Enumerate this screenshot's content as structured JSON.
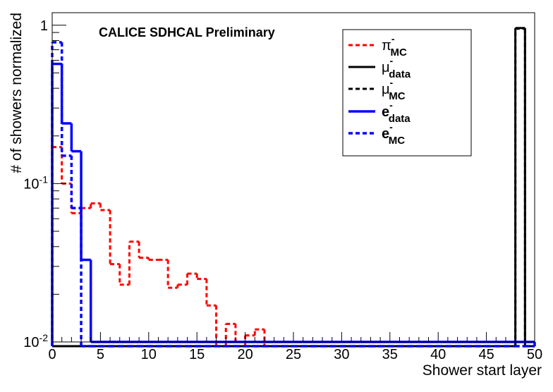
{
  "chart_data": {
    "type": "line",
    "title": "CALICE SDHCAL Preliminary",
    "xlabel": "Shower start layer",
    "ylabel": "# of showers normalized",
    "xlim": [
      0,
      50
    ],
    "ylim": [
      0.01,
      1.2
    ],
    "yscale": "log",
    "x_ticks": [
      "0",
      "5",
      "10",
      "15",
      "20",
      "25",
      "30",
      "35",
      "40",
      "45",
      "50"
    ],
    "y_ticks": [
      {
        "base": "10",
        "exp": "-2",
        "value": 0.01
      },
      {
        "base": "10",
        "exp": "-1",
        "value": 0.1
      },
      {
        "base": "1",
        "exp": "",
        "value": 1
      }
    ],
    "legend_position": "top-right",
    "series": [
      {
        "name": "π-MC",
        "sym": "π",
        "sup": "-",
        "sub": "MC",
        "color": "#ff0000",
        "dash": true,
        "bold": false,
        "x": [
          0,
          1,
          2,
          3,
          4,
          5,
          6,
          7,
          8,
          9,
          10,
          11,
          12,
          13,
          14,
          15,
          16,
          17,
          18,
          19,
          20,
          21,
          22,
          23,
          24,
          25,
          26,
          27,
          28,
          29,
          30,
          31,
          32,
          33,
          34,
          35,
          36,
          37,
          38,
          39,
          40,
          41,
          42,
          43,
          44,
          45,
          46,
          47,
          48,
          49
        ],
        "y": [
          0.17,
          0.1,
          0.065,
          0.07,
          0.075,
          0.068,
          0.031,
          0.023,
          0.043,
          0.034,
          0.033,
          0.033,
          0.022,
          0.023,
          0.027,
          0.025,
          0.017,
          0.009,
          0.013,
          0.008,
          0.011,
          0.012,
          0.009,
          0.009,
          0.009,
          0.009,
          0.009,
          0.009,
          0.009,
          0.009,
          0.009,
          0.009,
          0.009,
          0.009,
          0.009,
          0.009,
          0.009,
          0.009,
          0.009,
          0.009,
          0.009,
          0.009,
          0.009,
          0.009,
          0.009,
          0.009,
          0.009,
          0.009,
          0.009,
          0.009
        ]
      },
      {
        "name": "μ-data",
        "sym": "μ",
        "sup": "-",
        "sub": "data",
        "color": "#000000",
        "dash": false,
        "bold": false,
        "x": [
          0,
          1,
          2,
          3,
          4,
          5,
          6,
          7,
          8,
          9,
          10,
          11,
          12,
          13,
          14,
          15,
          16,
          17,
          18,
          19,
          20,
          21,
          22,
          23,
          24,
          25,
          26,
          27,
          28,
          29,
          30,
          31,
          32,
          33,
          34,
          35,
          36,
          37,
          38,
          39,
          40,
          41,
          42,
          43,
          44,
          45,
          46,
          47,
          48,
          49
        ],
        "y": [
          0.009,
          0.009,
          0.009,
          0.009,
          0.009,
          0.009,
          0.009,
          0.009,
          0.009,
          0.009,
          0.009,
          0.009,
          0.009,
          0.009,
          0.009,
          0.009,
          0.009,
          0.009,
          0.009,
          0.009,
          0.009,
          0.009,
          0.009,
          0.009,
          0.009,
          0.009,
          0.009,
          0.009,
          0.009,
          0.009,
          0.009,
          0.009,
          0.009,
          0.009,
          0.009,
          0.009,
          0.009,
          0.009,
          0.009,
          0.009,
          0.009,
          0.009,
          0.009,
          0.009,
          0.009,
          0.009,
          0.009,
          0.009,
          0.96,
          0.009
        ]
      },
      {
        "name": "μ-MC",
        "sym": "μ",
        "sup": "-",
        "sub": "MC",
        "color": "#000000",
        "dash": true,
        "bold": false,
        "x": [
          0,
          1,
          2,
          3,
          4,
          5,
          6,
          7,
          8,
          9,
          10,
          11,
          12,
          13,
          14,
          15,
          16,
          17,
          18,
          19,
          20,
          21,
          22,
          23,
          24,
          25,
          26,
          27,
          28,
          29,
          30,
          31,
          32,
          33,
          34,
          35,
          36,
          37,
          38,
          39,
          40,
          41,
          42,
          43,
          44,
          45,
          46,
          47,
          48,
          49
        ],
        "y": [
          0.009,
          0.009,
          0.009,
          0.009,
          0.009,
          0.009,
          0.009,
          0.009,
          0.009,
          0.009,
          0.009,
          0.009,
          0.009,
          0.009,
          0.009,
          0.009,
          0.009,
          0.009,
          0.009,
          0.009,
          0.009,
          0.009,
          0.009,
          0.009,
          0.009,
          0.009,
          0.009,
          0.009,
          0.009,
          0.009,
          0.009,
          0.009,
          0.009,
          0.009,
          0.009,
          0.009,
          0.009,
          0.009,
          0.009,
          0.009,
          0.009,
          0.009,
          0.009,
          0.009,
          0.009,
          0.009,
          0.009,
          0.009,
          0.95,
          0.009
        ]
      },
      {
        "name": "e-data",
        "sym": "e",
        "sup": "-",
        "sub": "data",
        "color": "#0000ff",
        "dash": false,
        "bold": true,
        "x": [
          0,
          1,
          2,
          3,
          4,
          5,
          6,
          7,
          8,
          9,
          10,
          11,
          12,
          13,
          14,
          15,
          16,
          17,
          18,
          19,
          20,
          21,
          22,
          23,
          24,
          25,
          26,
          27,
          28,
          29,
          30,
          31,
          32,
          33,
          34,
          35,
          36,
          37,
          38,
          39,
          40,
          41,
          42,
          43,
          44,
          45,
          46,
          47,
          48,
          49
        ],
        "y": [
          0.57,
          0.24,
          0.16,
          0.033,
          0.01,
          0.01,
          0.01,
          0.01,
          0.01,
          0.01,
          0.01,
          0.01,
          0.01,
          0.01,
          0.01,
          0.01,
          0.01,
          0.01,
          0.01,
          0.01,
          0.01,
          0.01,
          0.01,
          0.01,
          0.01,
          0.01,
          0.01,
          0.01,
          0.01,
          0.01,
          0.01,
          0.01,
          0.01,
          0.01,
          0.01,
          0.01,
          0.01,
          0.01,
          0.01,
          0.01,
          0.01,
          0.01,
          0.01,
          0.01,
          0.01,
          0.01,
          0.01,
          0.01,
          0.01,
          0.01
        ]
      },
      {
        "name": "e-MC",
        "sym": "e",
        "sup": "-",
        "sub": "MC",
        "color": "#0000ff",
        "dash": true,
        "bold": true,
        "x": [
          0,
          1,
          2,
          3,
          4,
          5,
          6,
          7,
          8,
          9,
          10,
          11,
          12,
          13,
          14,
          15,
          16,
          17,
          18,
          19,
          20,
          21,
          22,
          23,
          24,
          25,
          26,
          27,
          28,
          29,
          30,
          31,
          32,
          33,
          34,
          35,
          36,
          37,
          38,
          39,
          40,
          41,
          42,
          43,
          44,
          45,
          46,
          47,
          48,
          49
        ],
        "y": [
          0.78,
          0.15,
          0.07,
          0.009,
          0.009,
          0.009,
          0.009,
          0.009,
          0.009,
          0.009,
          0.009,
          0.009,
          0.009,
          0.009,
          0.009,
          0.009,
          0.009,
          0.009,
          0.009,
          0.009,
          0.009,
          0.009,
          0.009,
          0.009,
          0.009,
          0.009,
          0.009,
          0.009,
          0.009,
          0.009,
          0.009,
          0.009,
          0.009,
          0.009,
          0.009,
          0.009,
          0.009,
          0.009,
          0.009,
          0.009,
          0.009,
          0.009,
          0.009,
          0.009,
          0.009,
          0.009,
          0.009,
          0.009,
          0.009,
          0.009
        ]
      }
    ]
  }
}
